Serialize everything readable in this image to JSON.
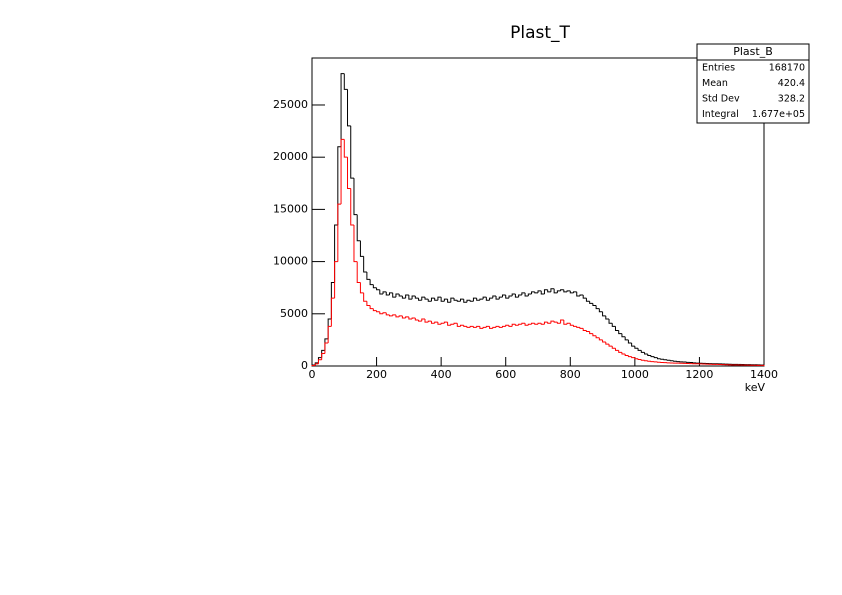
{
  "chart_data": {
    "type": "histogram",
    "title": "Plast_T",
    "x_label": "keV",
    "bins": [
      0,
      10,
      20,
      30,
      40,
      50,
      60,
      70,
      80,
      90,
      100,
      110,
      120,
      130,
      140,
      150,
      160,
      170,
      180,
      190,
      200,
      210,
      220,
      230,
      240,
      250,
      260,
      270,
      280,
      290,
      300,
      310,
      320,
      330,
      340,
      350,
      360,
      370,
      380,
      390,
      400,
      410,
      420,
      430,
      440,
      450,
      460,
      470,
      480,
      490,
      500,
      510,
      520,
      530,
      540,
      550,
      560,
      570,
      580,
      590,
      600,
      610,
      620,
      630,
      640,
      650,
      660,
      670,
      680,
      690,
      700,
      710,
      720,
      730,
      740,
      750,
      760,
      770,
      780,
      790,
      800,
      810,
      820,
      830,
      840,
      850,
      860,
      870,
      880,
      890,
      900,
      910,
      920,
      930,
      940,
      950,
      960,
      970,
      980,
      990,
      1000,
      1010,
      1020,
      1030,
      1040,
      1050,
      1060,
      1070,
      1080,
      1090,
      1100,
      1110,
      1120,
      1130,
      1140,
      1150,
      1160,
      1170,
      1180,
      1190,
      1200,
      1210,
      1220,
      1230,
      1240,
      1250,
      1260,
      1270,
      1280,
      1290,
      1300,
      1310,
      1320,
      1330,
      1340,
      1350,
      1360,
      1370,
      1380,
      1390,
      1400
    ],
    "series": [
      {
        "color": "#000000",
        "values": [
          100,
          300,
          800,
          1500,
          2600,
          4500,
          8000,
          13500,
          21000,
          28000,
          26500,
          23000,
          18000,
          14500,
          12000,
          10500,
          9000,
          8300,
          7800,
          7500,
          7300,
          6900,
          7100,
          6800,
          7000,
          6600,
          6900,
          6700,
          6500,
          6800,
          6400,
          6700,
          6500,
          6300,
          6600,
          6400,
          6200,
          6500,
          6300,
          6600,
          6200,
          6400,
          6100,
          6500,
          6300,
          6200,
          6400,
          6100,
          6300,
          6200,
          6500,
          6300,
          6400,
          6600,
          6300,
          6500,
          6700,
          6400,
          6600,
          6800,
          6500,
          6700,
          6900,
          6600,
          6800,
          7000,
          6700,
          6900,
          7100,
          7000,
          7200,
          6900,
          7300,
          7100,
          7400,
          7000,
          7200,
          7300,
          7100,
          7200,
          7000,
          7100,
          6700,
          6800,
          6500,
          6200,
          6000,
          5800,
          5500,
          5200,
          4800,
          4500,
          4100,
          3800,
          3400,
          3100,
          2800,
          2500,
          2200,
          1900,
          1700,
          1500,
          1300,
          1150,
          1000,
          900,
          800,
          700,
          650,
          600,
          550,
          500,
          450,
          420,
          400,
          380,
          350,
          330,
          300,
          280,
          260,
          250,
          240,
          230,
          220,
          210,
          200,
          190,
          180,
          170,
          160,
          150,
          150,
          140,
          130,
          130,
          120,
          120,
          110,
          100
        ]
      },
      {
        "color": "#ff0000",
        "values": [
          50,
          200,
          600,
          1200,
          2200,
          3800,
          6500,
          10000,
          15500,
          21700,
          20000,
          17000,
          13500,
          10000,
          8000,
          7000,
          6200,
          5800,
          5500,
          5300,
          5200,
          5000,
          5100,
          4900,
          4800,
          4900,
          4700,
          4800,
          4600,
          4700,
          4500,
          4600,
          4400,
          4300,
          4500,
          4200,
          4300,
          4100,
          4200,
          4000,
          4100,
          4200,
          3900,
          4000,
          4100,
          3800,
          3900,
          3800,
          3700,
          3800,
          3700,
          3800,
          3600,
          3700,
          3800,
          3600,
          3700,
          3800,
          3700,
          3800,
          3900,
          3800,
          4000,
          3900,
          4000,
          4100,
          3900,
          4000,
          4100,
          4000,
          4100,
          4000,
          4200,
          4100,
          4300,
          4200,
          4100,
          4400,
          4000,
          4100,
          3900,
          3800,
          3700,
          3600,
          3400,
          3300,
          3100,
          2900,
          2700,
          2500,
          2300,
          2100,
          1900,
          1700,
          1500,
          1300,
          1150,
          1000,
          900,
          800,
          700,
          620,
          550,
          500,
          450,
          420,
          390,
          360,
          340,
          320,
          300,
          290,
          280,
          270,
          260,
          250,
          240,
          230,
          220,
          210,
          200,
          190,
          180,
          170,
          160,
          150,
          140,
          130,
          120,
          110,
          100,
          100,
          90,
          90,
          80,
          80,
          70,
          70,
          60,
          60
        ]
      }
    ],
    "xlim": [
      0,
      1400
    ],
    "xticks": [
      0,
      200,
      400,
      600,
      800,
      1000,
      1200,
      1400
    ],
    "ylim": [
      0,
      29500
    ],
    "yticks": [
      0,
      5000,
      10000,
      15000,
      20000,
      25000
    ],
    "stats_box": {
      "title": "Plast_B",
      "rows": [
        {
          "label": "Entries",
          "value": 168170
        },
        {
          "label": "Mean",
          "value": 420.4
        },
        {
          "label": "Std Dev",
          "value": 328.2
        },
        {
          "label": "Integral",
          "value": {
            "value": 167700,
            "label": "1.677e+05"
          }
        }
      ]
    }
  }
}
